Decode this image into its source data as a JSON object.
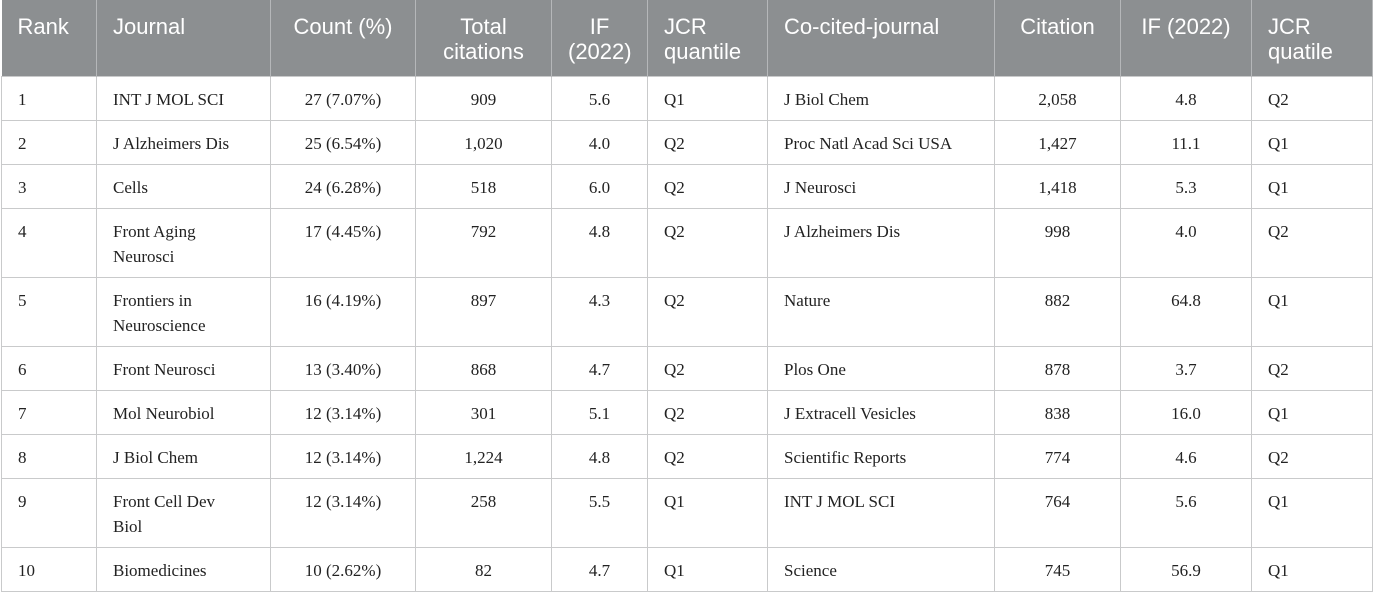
{
  "table": {
    "header": [
      "Rank",
      "Journal",
      "Count (%)",
      "Total citations",
      "IF (2022)",
      "JCR quantile",
      "Co-cited-journal",
      "Citation",
      "IF (2022)",
      "JCR quatile"
    ],
    "rows": [
      [
        "1",
        "INT J MOL SCI",
        "27 (7.07%)",
        "909",
        "5.6",
        "Q1",
        "J Biol Chem",
        "2,058",
        "4.8",
        "Q2"
      ],
      [
        "2",
        "J Alzheimers Dis",
        "25 (6.54%)",
        "1,020",
        "4.0",
        "Q2",
        "Proc Natl Acad Sci USA",
        "1,427",
        "11.1",
        "Q1"
      ],
      [
        "3",
        "Cells",
        "24 (6.28%)",
        "518",
        "6.0",
        "Q2",
        "J Neurosci",
        "1,418",
        "5.3",
        "Q1"
      ],
      [
        "4",
        "Front Aging Neurosci",
        "17 (4.45%)",
        "792",
        "4.8",
        "Q2",
        "J Alzheimers Dis",
        "998",
        "4.0",
        "Q2"
      ],
      [
        "5",
        "Frontiers in Neuroscience",
        "16 (4.19%)",
        "897",
        "4.3",
        "Q2",
        "Nature",
        "882",
        "64.8",
        "Q1"
      ],
      [
        "6",
        "Front Neurosci",
        "13 (3.40%)",
        "868",
        "4.7",
        "Q2",
        "Plos One",
        "878",
        "3.7",
        "Q2"
      ],
      [
        "7",
        "Mol Neurobiol",
        "12 (3.14%)",
        "301",
        "5.1",
        "Q2",
        "J Extracell Vesicles",
        "838",
        "16.0",
        "Q1"
      ],
      [
        "8",
        "J Biol Chem",
        "12 (3.14%)",
        "1,224",
        "4.8",
        "Q2",
        "Scientific Reports",
        "774",
        "4.6",
        "Q2"
      ],
      [
        "9",
        "Front Cell Dev Biol",
        "12 (3.14%)",
        "258",
        "5.5",
        "Q1",
        "INT J MOL SCI",
        "764",
        "5.6",
        "Q1"
      ],
      [
        "10",
        "Biomedicines",
        "10 (2.62%)",
        "82",
        "4.7",
        "Q1",
        "Science",
        "745",
        "56.9",
        "Q1"
      ]
    ]
  }
}
